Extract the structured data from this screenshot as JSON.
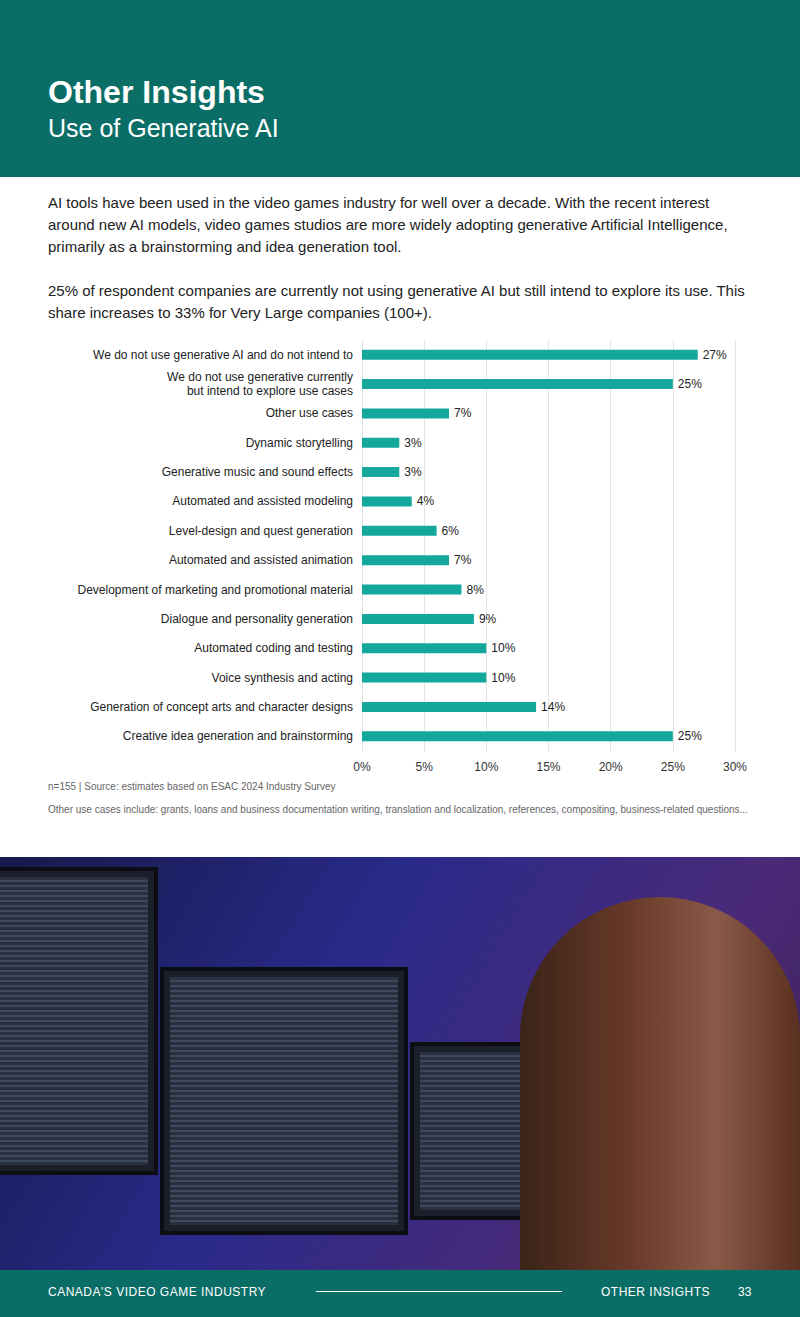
{
  "page": {
    "header": {
      "title": "Other Insights",
      "subtitle": "Use of Generative AI"
    },
    "paragraphs": [
      "AI tools have been used in the video games industry for well over a decade. With the recent interest around new AI models, video games studios are more widely adopting generative Artificial Intelligence, primarily as a brainstorming and idea generation tool.",
      "25% of respondent companies are currently not using generative AI but still intend to explore its use. This share increases to 33% for Very Large companies (100+)."
    ],
    "notes": [
      "n=155 | Source: estimates based on ESAC 2024 Industry Survey",
      "Other use cases include: grants, loans and business documentation writing, translation and localization, references, compositing, business-related questions..."
    ],
    "footer": {
      "left": "CANADA'S VIDEO GAME INDUSTRY",
      "section": "OTHER INSIGHTS",
      "page_number": 33
    }
  },
  "chart_data": {
    "type": "bar",
    "orientation": "horizontal",
    "categories": [
      "We do not use generative AI and do not intend to",
      "We do not use generative currently but intend to explore use cases",
      "Other use cases",
      "Dynamic storytelling",
      "Generative music and sound effects",
      "Automated and assisted modeling",
      "Level-design and quest generation",
      "Automated and assisted animation",
      "Development of marketing and promotional material",
      "Dialogue and personality generation",
      "Automated coding and testing",
      "Voice synthesis and acting",
      "Generation of concept arts and character designs",
      "Creative idea generation and brainstorming"
    ],
    "values": [
      27,
      25,
      7,
      3,
      3,
      4,
      6,
      7,
      8,
      9,
      10,
      10,
      14,
      25
    ],
    "value_labels": [
      "27%",
      "25%",
      "7%",
      "3%",
      "3%",
      "4%",
      "6%",
      "7%",
      "8%",
      "9%",
      "10%",
      "10%",
      "14%",
      "25%"
    ],
    "color": "#14a89c",
    "data_labels": true,
    "grid": true,
    "xlim": [
      0,
      30
    ],
    "xticks": [
      {
        "value": 0,
        "label": "0%"
      },
      {
        "value": 5,
        "label": "5%"
      },
      {
        "value": 10,
        "label": "10%"
      },
      {
        "value": 15,
        "label": "15%"
      },
      {
        "value": 20,
        "label": "20%"
      },
      {
        "value": 25,
        "label": "25%"
      },
      {
        "value": 30,
        "label": "30%"
      }
    ]
  }
}
